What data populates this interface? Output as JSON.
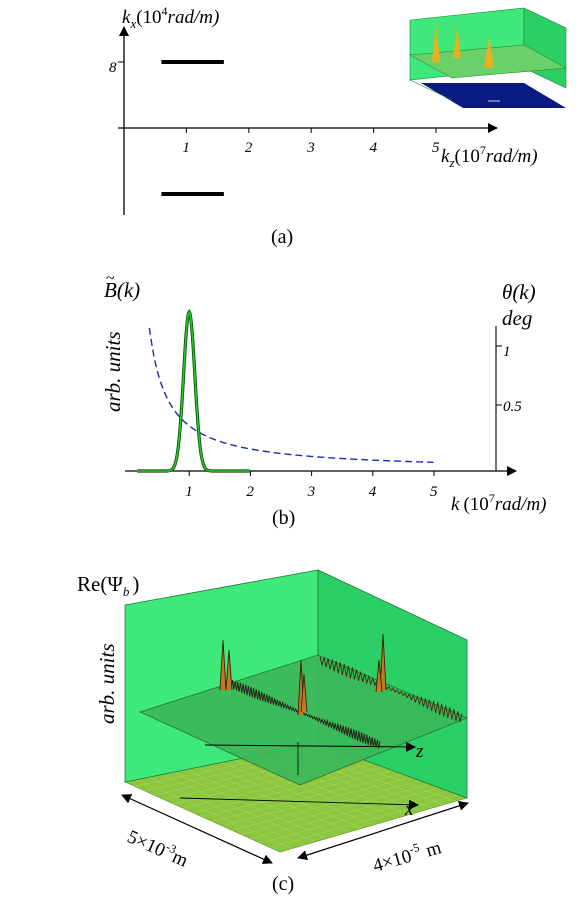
{
  "panel_a": {
    "y_axis_label": "k",
    "y_axis_sub": "x",
    "y_axis_unit_pre": "(10",
    "y_axis_unit_exp": "4",
    "y_axis_unit_post": "rad/m)",
    "y_tick": "8",
    "x_ticks": [
      "1",
      "2",
      "3",
      "4",
      "5"
    ],
    "x_axis_label": "k",
    "x_axis_sub": "z",
    "x_axis_unit_pre": "(10",
    "x_axis_unit_exp": "7",
    "x_axis_unit_post": "rad/m)",
    "caption": "(a)"
  },
  "panel_b": {
    "left_label": "B(k)",
    "left_tilde": "~",
    "y_label": "arb. units",
    "right_label": "θ(k)",
    "right_unit": "deg",
    "right_ticks": [
      "1",
      "0.5"
    ],
    "x_ticks": [
      "1",
      "2",
      "3",
      "4",
      "5"
    ],
    "x_axis_label": "k",
    "x_axis_unit_pre": "(10",
    "x_axis_unit_exp": "7",
    "x_axis_unit_post": "rad/m)",
    "caption": "(b)"
  },
  "panel_c": {
    "title_pre": "Re(Ψ",
    "title_sub": "b",
    "title_post": ")",
    "y_label": "arb. units",
    "z_label": "z",
    "x_label": "x",
    "dim_left_pre": "5×10",
    "dim_left_exp": "-3",
    "dim_left_unit": "m",
    "dim_right_pre": "4×10",
    "dim_right_exp": "-5",
    "dim_right_unit": "m",
    "caption": "(c)"
  },
  "colors": {
    "green_panel": "#3fe87a",
    "green_curve": "#22cc22",
    "dashed_curve": "#1a2bb0",
    "floor_green": "#8cc63f",
    "yellow_peak": "#e8b020",
    "navy": "#0a1a80"
  },
  "chart_data": [
    {
      "type": "line",
      "panel": "a",
      "x_range": [
        0,
        5
      ],
      "series": [
        {
          "x": [
            0.6,
            1.6
          ],
          "y": [
            8,
            8
          ]
        },
        {
          "x": [
            0.6,
            1.6
          ],
          "y": [
            -8,
            -8
          ]
        }
      ]
    },
    {
      "type": "line",
      "panel": "b",
      "x_range": [
        0,
        5
      ],
      "series": [
        {
          "x": [
            0.2,
            0.6,
            0.8,
            0.9,
            0.95,
            1.0,
            1.05,
            1.1,
            1.2,
            1.4,
            1.8,
            2.0
          ],
          "y": [
            0,
            0.02,
            0.25,
            0.62,
            0.88,
            1.0,
            0.88,
            0.62,
            0.25,
            0.02,
            0,
            0
          ]
        },
        {
          "x": [
            0.4,
            0.6,
            0.8,
            1.0,
            1.2,
            1.5,
            2.0,
            2.5,
            3.0,
            3.5,
            4.0,
            5.0
          ],
          "y": [
            1.2,
            0.8,
            0.55,
            0.36,
            0.3,
            0.24,
            0.18,
            0.15,
            0.12,
            0.1,
            0.085,
            0.06
          ]
        }
      ]
    }
  ]
}
